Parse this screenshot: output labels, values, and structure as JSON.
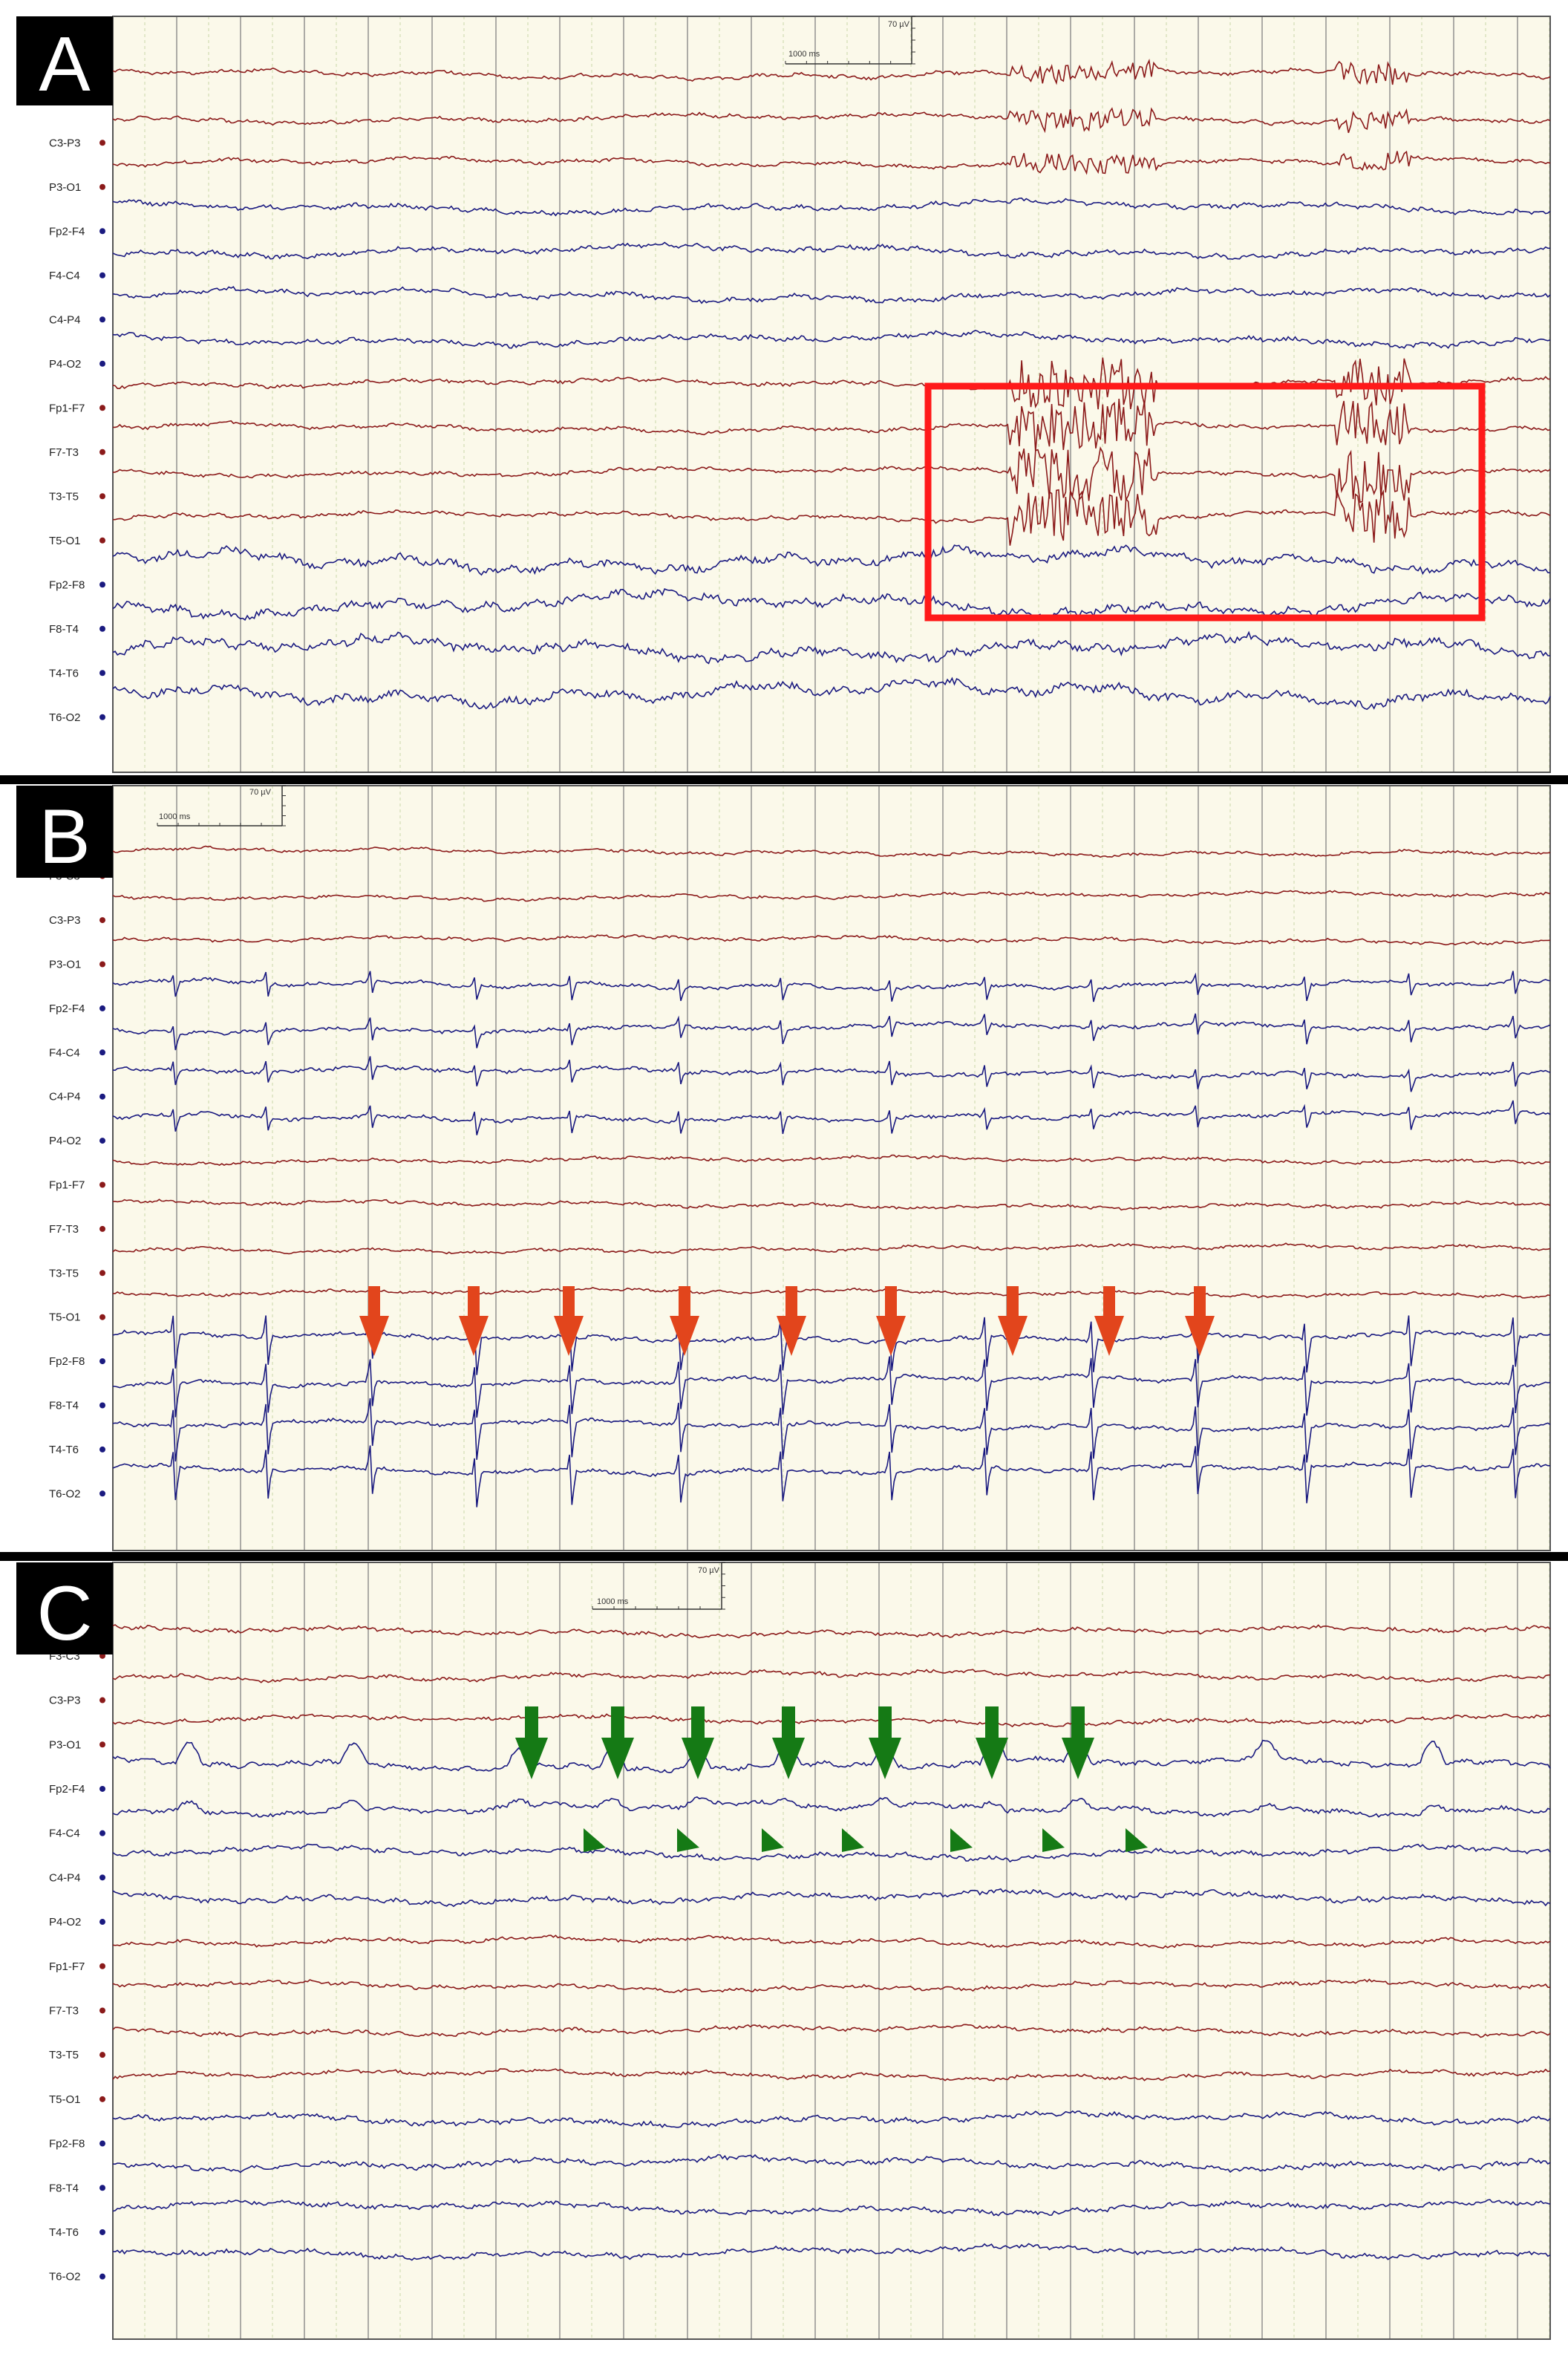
{
  "channels": [
    "F3-C3",
    "C3-P3",
    "P3-O1",
    "Fp2-F4",
    "F4-C4",
    "C4-P4",
    "P4-O2",
    "Fp1-F7",
    "F7-T3",
    "T3-T5",
    "T5-O1",
    "Fp2-F8",
    "F8-T4",
    "T4-T6",
    "T6-O2"
  ],
  "channel_hemisphere": [
    "left",
    "left",
    "left",
    "right",
    "right",
    "right",
    "right",
    "left",
    "left",
    "left",
    "left",
    "right",
    "right",
    "right",
    "right"
  ],
  "colors": {
    "left_trace": "#8b1a1a",
    "right_trace": "#1a1a80",
    "background": "#fbf9ea",
    "label_bg": "#ffffff",
    "grid_major": "#8a8a8a",
    "grid_minor": "#c9d6a8",
    "highlight_box": "#ff1a1a",
    "red_arrow": "#e2451c",
    "green_arrow": "#157a15",
    "panel_tag_bg": "#000000",
    "panel_tag_text": "#ffffff"
  },
  "scale": {
    "time_label": "1000 ms",
    "amplitude_label": "70 µV"
  },
  "panels": [
    {
      "letter": "A",
      "annotation": "box"
    },
    {
      "letter": "B",
      "annotation": "red arrows",
      "arrow_count": 9
    },
    {
      "letter": "C",
      "annotation": "green arrows and arrowheads",
      "arrow_count": 7,
      "arrowhead_count": 7
    }
  ]
}
